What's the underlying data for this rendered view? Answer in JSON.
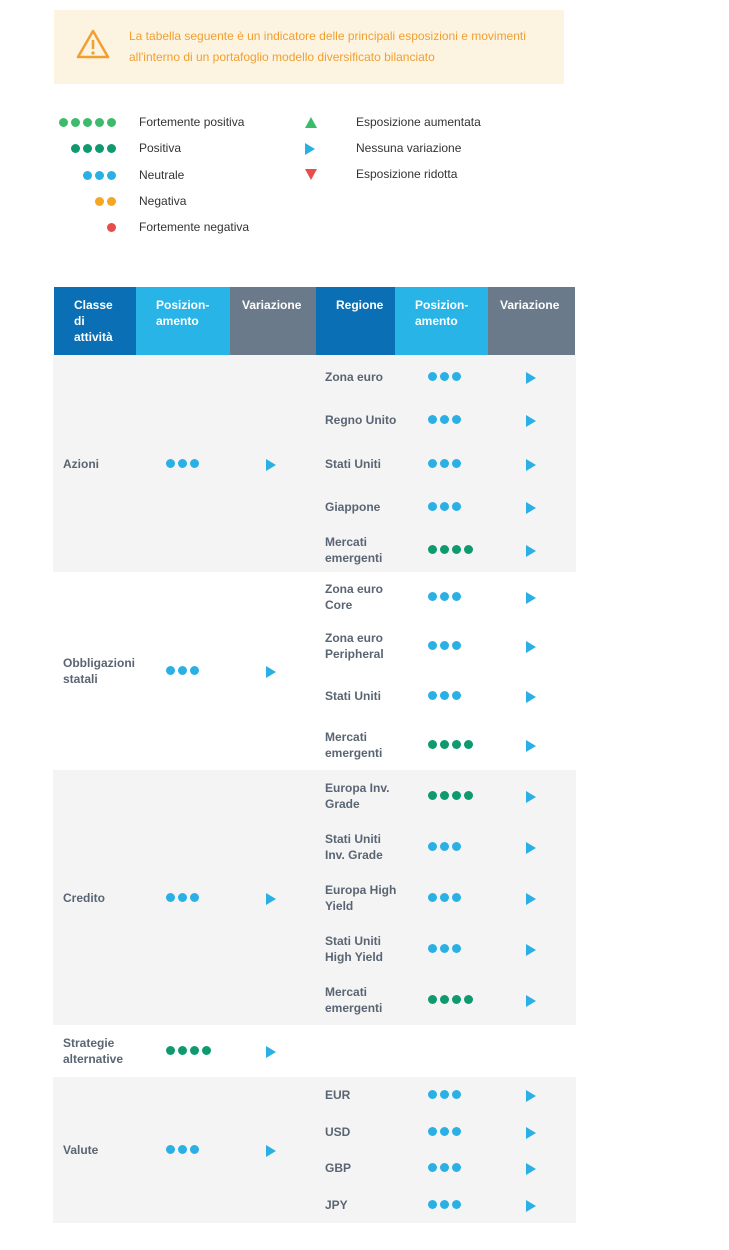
{
  "banner": {
    "text": "La tabella seguente è un indicatore delle principali esposizioni e movimenti all'interno di un portafoglio modello diversificato bilanciato"
  },
  "legend": {
    "positioning": [
      {
        "label": "Fortemente positiva",
        "dots": 5,
        "color": "#3dbb6c"
      },
      {
        "label": "Positiva",
        "dots": 4,
        "color": "#0e9a6e"
      },
      {
        "label": "Neutrale",
        "dots": 3,
        "color": "#2ab0e4"
      },
      {
        "label": "Negativa",
        "dots": 2,
        "color": "#f5a623"
      },
      {
        "label": "Fortemente negativa",
        "dots": 1,
        "color": "#e84c4c"
      }
    ],
    "change": [
      {
        "label": "Esposizione aumentata",
        "color": "#3dbb6c"
      },
      {
        "label": "Nessuna variazione",
        "color": "#2ab0e4"
      },
      {
        "label": "Esposizione ridotta",
        "color": "#e84c4c"
      }
    ]
  },
  "table": {
    "headers": [
      "Classe di attività",
      "Posizion-amento",
      "Variazione",
      "Regione",
      "Posizion-amento",
      "Variazione"
    ],
    "groups": [
      {
        "name": "Azioni",
        "dots": 3,
        "rows": [
          {
            "region": "Zona euro",
            "dots": 3
          },
          {
            "region": "Regno Unito",
            "dots": 3
          },
          {
            "region": "Stati Uniti",
            "dots": 3
          },
          {
            "region": "Giappone",
            "dots": 3
          },
          {
            "region": "Mercati emergenti",
            "dots": 4
          }
        ]
      },
      {
        "name": "Obbligazioni statali",
        "dots": 3,
        "rows": [
          {
            "region": "Zona euro Core",
            "dots": 3
          },
          {
            "region": "Zona euro Peripheral",
            "dots": 3
          },
          {
            "region": "Stati Uniti",
            "dots": 3
          },
          {
            "region": "Mercati emergenti",
            "dots": 4
          }
        ]
      },
      {
        "name": "Credito",
        "dots": 3,
        "rows": [
          {
            "region": "Europa Inv. Grade",
            "dots": 4
          },
          {
            "region": "Stati Uniti Inv. Grade",
            "dots": 3
          },
          {
            "region": "Europa High Yield",
            "dots": 3
          },
          {
            "region": "Stati Uniti High Yield",
            "dots": 3
          },
          {
            "region": "Mercati emergenti",
            "dots": 4
          }
        ]
      },
      {
        "name": "Strategie alternative",
        "dots": 4,
        "rows": []
      },
      {
        "name": "Valute",
        "dots": 3,
        "rows": [
          {
            "region": "EUR",
            "dots": 3
          },
          {
            "region": "USD",
            "dots": 3
          },
          {
            "region": "GBP",
            "dots": 3
          },
          {
            "region": "JPY",
            "dots": 3
          }
        ]
      }
    ]
  }
}
